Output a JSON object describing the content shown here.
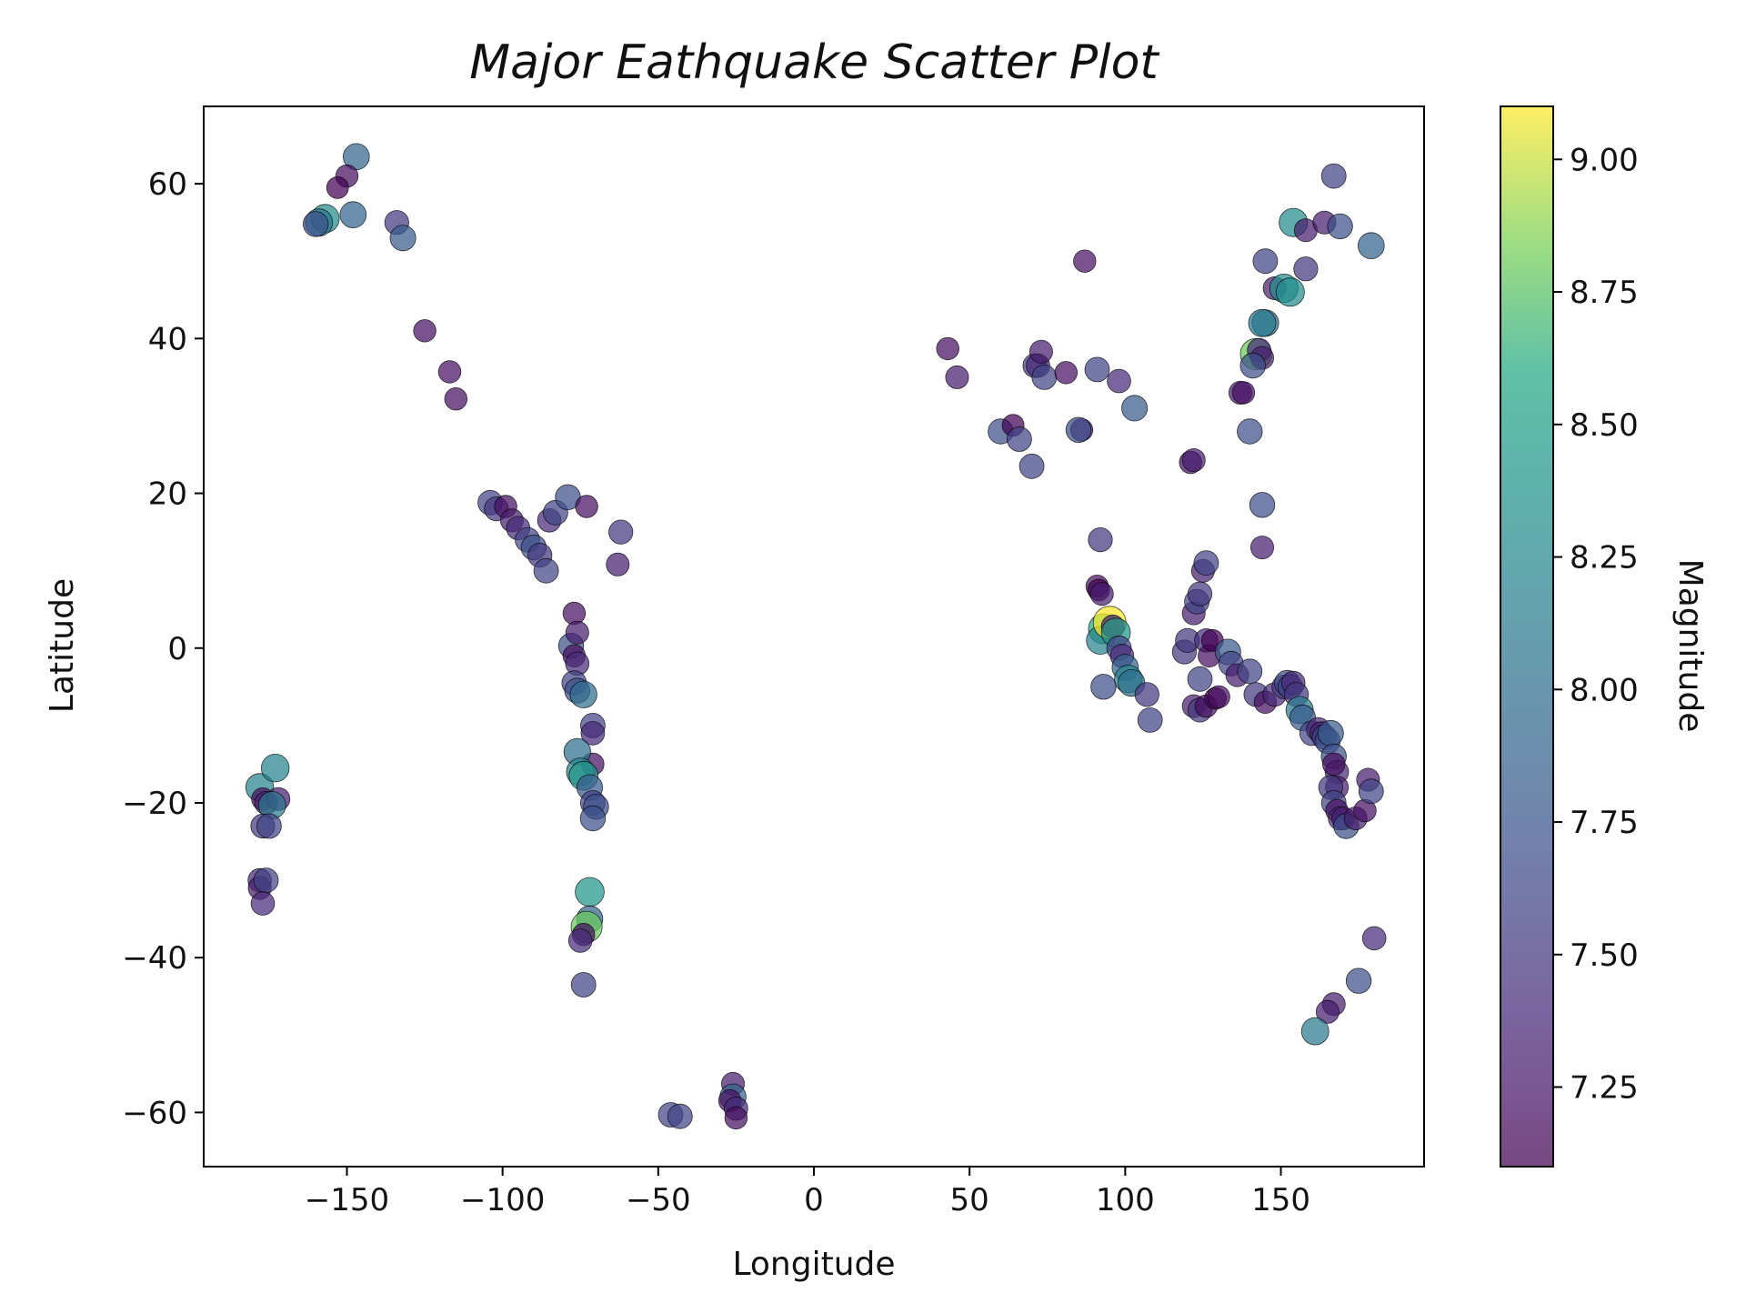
{
  "chart_data": {
    "type": "scatter",
    "title": "Major Eathquake Scatter Plot",
    "xlabel": "Longitude",
    "ylabel": "Latitude",
    "xlim": [
      -196,
      196
    ],
    "ylim": [
      -67,
      70
    ],
    "xticks": [
      -150,
      -100,
      -50,
      0,
      50,
      100,
      150
    ],
    "xtick_labels": [
      "−150",
      "−100",
      "−50",
      "0",
      "50",
      "100",
      "150"
    ],
    "yticks": [
      -60,
      -40,
      -20,
      0,
      20,
      40,
      60
    ],
    "ytick_labels": [
      "−60",
      "−40",
      "−20",
      "0",
      "20",
      "40",
      "60"
    ],
    "grid": false,
    "colorbar": {
      "label": "Magnitude",
      "range": [
        7.1,
        9.1
      ],
      "ticks": [
        7.25,
        7.5,
        7.75,
        8.0,
        8.25,
        8.5,
        8.75,
        9.0
      ],
      "tick_labels": [
        "7.25",
        "7.50",
        "7.75",
        "8.00",
        "8.25",
        "8.50",
        "8.75",
        "9.00"
      ],
      "colormap": "viridis"
    },
    "points": [
      [
        -147,
        63.5,
        7.9
      ],
      [
        -150,
        61,
        7.2
      ],
      [
        -153,
        59.5,
        7.1
      ],
      [
        -157,
        55.5,
        8.3
      ],
      [
        -159,
        55,
        8.1
      ],
      [
        -160,
        54.8,
        7.7
      ],
      [
        -148,
        56,
        7.9
      ],
      [
        -134,
        55,
        7.5
      ],
      [
        -132,
        53,
        7.8
      ],
      [
        -125,
        41,
        7.2
      ],
      [
        -117,
        35.7,
        7.2
      ],
      [
        -115,
        32.2,
        7.2
      ],
      [
        -104,
        18.8,
        7.6
      ],
      [
        -102,
        18,
        7.5
      ],
      [
        -99,
        18.3,
        7.2
      ],
      [
        -97,
        16.5,
        7.3
      ],
      [
        -95,
        15.5,
        7.4
      ],
      [
        -92,
        14,
        7.6
      ],
      [
        -90,
        13,
        7.7
      ],
      [
        -88,
        12,
        7.5
      ],
      [
        -86,
        10,
        7.6
      ],
      [
        -85,
        16.5,
        7.4
      ],
      [
        -83,
        17.5,
        7.6
      ],
      [
        -79,
        19.5,
        7.7
      ],
      [
        -73,
        18.3,
        7.2
      ],
      [
        -62,
        15,
        7.5
      ],
      [
        -63,
        10.8,
        7.3
      ],
      [
        -78,
        0.3,
        7.7
      ],
      [
        -77,
        4.5,
        7.2
      ],
      [
        -76,
        2,
        7.3
      ],
      [
        -77,
        -1,
        7.2
      ],
      [
        -76,
        -2,
        7.4
      ],
      [
        -77,
        -4.5,
        7.6
      ],
      [
        -76,
        -5.5,
        7.7
      ],
      [
        -74,
        -6,
        8.0
      ],
      [
        -71,
        -10,
        7.6
      ],
      [
        -71,
        -11,
        7.4
      ],
      [
        -71,
        -15,
        7.2
      ],
      [
        -76,
        -13.4,
        8.0
      ],
      [
        -75,
        -16,
        8.2
      ],
      [
        -74,
        -16.5,
        8.4
      ],
      [
        -72,
        -18,
        7.8
      ],
      [
        -71,
        -20,
        7.6
      ],
      [
        -70,
        -20.5,
        7.7
      ],
      [
        -71,
        -22,
        7.7
      ],
      [
        -72,
        -31.5,
        8.4
      ],
      [
        -72,
        -35,
        7.9
      ],
      [
        -73,
        -36,
        8.8
      ],
      [
        -74,
        -37,
        7.2
      ],
      [
        -75,
        -37.8,
        7.4
      ],
      [
        -74,
        -43.5,
        7.6
      ],
      [
        -178,
        -18,
        8.2
      ],
      [
        -177,
        -19.5,
        7.2
      ],
      [
        -176,
        -20,
        7.3
      ],
      [
        -173,
        -15.5,
        8.2
      ],
      [
        -172,
        -19.5,
        7.3
      ],
      [
        -174,
        -20.3,
        8.1
      ],
      [
        -177,
        -23,
        7.5
      ],
      [
        -175,
        -23,
        7.6
      ],
      [
        -178,
        -30,
        7.4
      ],
      [
        -178,
        -31,
        7.3
      ],
      [
        -176,
        -30,
        7.6
      ],
      [
        -177,
        -33,
        7.4
      ],
      [
        -46,
        -60.3,
        7.6
      ],
      [
        -43,
        -60.5,
        7.6
      ],
      [
        -26,
        -56.3,
        7.3
      ],
      [
        -26,
        -58,
        7.9
      ],
      [
        -27,
        -58.5,
        7.2
      ],
      [
        -25,
        -59.5,
        7.4
      ],
      [
        -25,
        -60.7,
        7.2
      ],
      [
        43,
        38.7,
        7.2
      ],
      [
        46,
        35,
        7.3
      ],
      [
        60,
        28,
        7.7
      ],
      [
        64,
        28.8,
        7.1
      ],
      [
        66,
        27,
        7.6
      ],
      [
        70,
        23.5,
        7.6
      ],
      [
        71,
        36.5,
        7.5
      ],
      [
        72,
        36.5,
        7.4
      ],
      [
        73,
        38.3,
        7.3
      ],
      [
        74,
        35,
        7.6
      ],
      [
        81,
        35.6,
        7.2
      ],
      [
        86,
        28.2,
        7.2
      ],
      [
        85,
        28.2,
        7.7
      ],
      [
        87,
        50,
        7.2
      ],
      [
        91,
        36,
        7.6
      ],
      [
        98,
        34.5,
        7.4
      ],
      [
        103,
        31,
        7.8
      ],
      [
        121,
        24,
        7.2
      ],
      [
        122,
        24.3,
        7.3
      ],
      [
        92,
        14,
        7.5
      ],
      [
        91,
        8,
        7.2
      ],
      [
        91.5,
        7.5,
        7.1
      ],
      [
        92.5,
        7,
        7.3
      ],
      [
        93,
        2.5,
        8.6
      ],
      [
        92,
        1,
        8.2
      ],
      [
        95,
        3.3,
        9.1
      ],
      [
        96,
        2.8,
        7.3
      ],
      [
        97,
        2,
        8.4
      ],
      [
        98,
        0,
        7.6
      ],
      [
        99,
        -1,
        7.4
      ],
      [
        100,
        -2.5,
        7.9
      ],
      [
        101,
        -4,
        8.2
      ],
      [
        102,
        -4.5,
        8.0
      ],
      [
        93,
        -5,
        7.7
      ],
      [
        107,
        -6,
        7.5
      ],
      [
        108,
        -9.3,
        7.6
      ],
      [
        119,
        -0.5,
        7.5
      ],
      [
        120,
        1,
        7.5
      ],
      [
        122,
        4.5,
        7.3
      ],
      [
        123,
        6,
        7.6
      ],
      [
        124,
        7,
        7.5
      ],
      [
        125,
        10,
        7.3
      ],
      [
        126,
        11,
        7.6
      ],
      [
        126,
        1,
        7.4
      ],
      [
        127,
        -1,
        7.2
      ],
      [
        128,
        1,
        7.1
      ],
      [
        124,
        -4,
        7.6
      ],
      [
        122,
        -7.5,
        7.3
      ],
      [
        124,
        -8,
        7.5
      ],
      [
        126,
        -7.5,
        7.2
      ],
      [
        129,
        -6.5,
        7.1
      ],
      [
        130,
        -6.3,
        7.2
      ],
      [
        133,
        -0.5,
        7.8
      ],
      [
        134,
        -2,
        7.6
      ],
      [
        136,
        -3.5,
        7.3
      ],
      [
        140,
        -3,
        7.6
      ],
      [
        142,
        -6,
        7.5
      ],
      [
        145,
        -7,
        7.2
      ],
      [
        148,
        -6,
        7.4
      ],
      [
        151,
        -5,
        7.5
      ],
      [
        152,
        -4.5,
        7.7
      ],
      [
        153,
        -5,
        7.6
      ],
      [
        154,
        -4.5,
        7.4
      ],
      [
        155,
        -6,
        7.5
      ],
      [
        156,
        -8,
        8.1
      ],
      [
        157,
        -9,
        7.8
      ],
      [
        160,
        -11,
        7.6
      ],
      [
        162,
        -10.5,
        7.4
      ],
      [
        163,
        -11,
        7.3
      ],
      [
        164,
        -11.5,
        7.6
      ],
      [
        165,
        -12,
        7.7
      ],
      [
        166,
        -11,
        7.8
      ],
      [
        167,
        -14,
        7.7
      ],
      [
        168,
        -16,
        7.4
      ],
      [
        167,
        -15,
        7.2
      ],
      [
        168,
        -18,
        7.3
      ],
      [
        166,
        -18,
        7.5
      ],
      [
        167,
        -20,
        7.6
      ],
      [
        168,
        -21,
        7.2
      ],
      [
        169,
        -22,
        7.4
      ],
      [
        170,
        -22,
        7.3
      ],
      [
        171,
        -23,
        7.7
      ],
      [
        174,
        -22,
        7.3
      ],
      [
        177,
        -21,
        7.2
      ],
      [
        178,
        -17,
        7.3
      ],
      [
        179,
        -18.5,
        7.6
      ],
      [
        137,
        33,
        7.3
      ],
      [
        138,
        33,
        7.2
      ],
      [
        140,
        28,
        7.7
      ],
      [
        142,
        38,
        8.8
      ],
      [
        143,
        38.5,
        7.4
      ],
      [
        144,
        37.5,
        7.3
      ],
      [
        145,
        42,
        8.0
      ],
      [
        144,
        42,
        8.1
      ],
      [
        145,
        50,
        7.6
      ],
      [
        144,
        18.5,
        7.7
      ],
      [
        144,
        13,
        7.3
      ],
      [
        141,
        36.5,
        7.7
      ],
      [
        148,
        46.5,
        7.3
      ],
      [
        151,
        46.5,
        8.3
      ],
      [
        153,
        46,
        8.3
      ],
      [
        154,
        55,
        8.3
      ],
      [
        158,
        54,
        7.3
      ],
      [
        164,
        55,
        7.3
      ],
      [
        167,
        61,
        7.6
      ],
      [
        169,
        54.5,
        7.7
      ],
      [
        158,
        49,
        7.5
      ],
      [
        179,
        52,
        7.9
      ],
      [
        180,
        -37.5,
        7.4
      ],
      [
        175,
        -43,
        7.7
      ],
      [
        167,
        -46,
        7.3
      ],
      [
        165,
        -47,
        7.3
      ],
      [
        161,
        -49.5,
        8.1
      ]
    ]
  }
}
